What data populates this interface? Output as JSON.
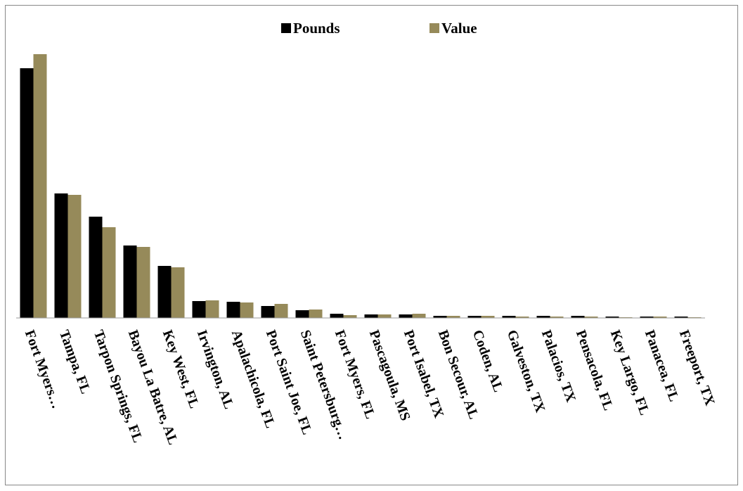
{
  "chart_data": {
    "type": "bar",
    "categories": [
      "Fort Myers…",
      "Tampa, FL",
      "Tarpon Springs, FL",
      "Bayou La Batre, AL",
      "Key West, FL",
      "Irvington, AL",
      "Apalachicola, FL",
      "Port Saint Joe, FL",
      "Saint Petersburg…",
      "Fort Myers, FL",
      "Pascagoula, MS",
      "Port Isabel, TX",
      "Bon Secour, AL",
      "Coden, AL",
      "Galveston, TX",
      "Palacios, TX",
      "Pensacola, FL",
      "Key Largo, FL",
      "Panacea, FL",
      "Freeport, TX"
    ],
    "series": [
      {
        "name": "Pounds",
        "color": "#000000",
        "values": [
          355,
          177,
          144,
          103,
          74,
          24,
          23,
          17,
          11,
          6,
          5,
          5,
          3,
          3,
          3,
          3,
          3,
          2,
          2,
          2
        ]
      },
      {
        "name": "Value",
        "color": "#968a5a",
        "values": [
          375,
          175,
          129,
          101,
          72,
          25,
          22,
          20,
          12,
          4,
          5,
          6,
          3,
          3,
          2,
          2,
          2,
          1,
          2,
          1
        ]
      }
    ],
    "ylim": [
      0,
      400
    ],
    "legend": "top"
  }
}
